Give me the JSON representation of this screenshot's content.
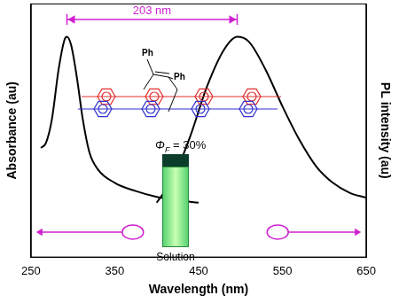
{
  "chart_data": {
    "type": "line",
    "x_label": "Wavelength (nm)",
    "y_label": "Absorbance (au)",
    "y2_label": "PL intensity (au)",
    "xlim": [
      250,
      650
    ],
    "xticks": [
      250,
      350,
      450,
      550,
      650
    ],
    "ylim": [
      -0.33,
      1.2
    ],
    "y2lim": [
      -0.33,
      1.2
    ],
    "tick_labels": "x",
    "grid": false,
    "series": [
      {
        "color": "#000000",
        "x": [
          262,
          268,
          275,
          283,
          290,
          293,
          298,
          305,
          312,
          320,
          330,
          350,
          375,
          400,
          425,
          450
        ],
        "values": [
          0.33,
          0.36,
          0.5,
          0.8,
          0.98,
          1.0,
          0.95,
          0.75,
          0.5,
          0.3,
          0.2,
          0.12,
          0.07,
          0.035,
          0.015,
          0.0
        ]
      },
      {
        "color": "#000000",
        "axis": "y2",
        "x": [
          400,
          420,
          440,
          460,
          480,
          496,
          510,
          530,
          550,
          570,
          590,
          610,
          630,
          650
        ],
        "values": [
          0.0,
          0.15,
          0.4,
          0.7,
          0.92,
          1.0,
          0.97,
          0.8,
          0.58,
          0.38,
          0.22,
          0.12,
          0.06,
          0.03
        ]
      }
    ],
    "annotations": [
      {
        "text": "203 nm",
        "x": [
          293,
          496
        ],
        "color": "#d020d0"
      }
    ],
    "inset": {
      "substituents": [
        "Ph",
        "Ph"
      ],
      "quantum_yield": {
        "symbol": "Φ",
        "subscript": "F",
        "text": " = 30%"
      },
      "sample": "Solution"
    }
  }
}
